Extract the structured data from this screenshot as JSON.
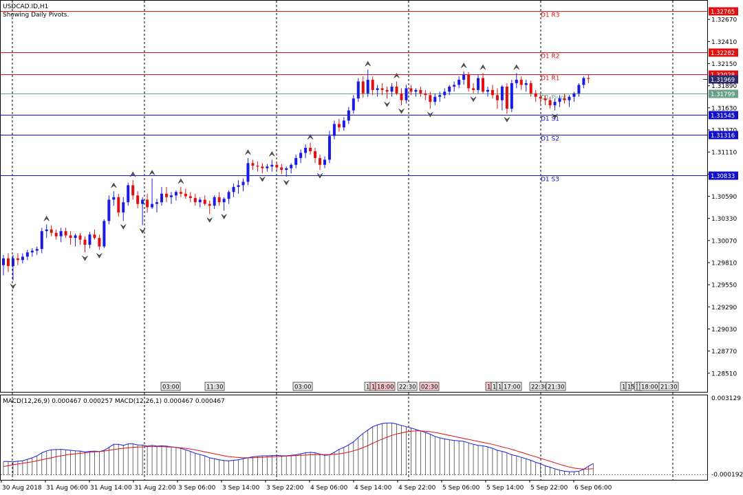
{
  "header": {
    "symbol_line": "USDCAD.ID,H1",
    "indicator_line": "Showing Daily Pivots."
  },
  "colors": {
    "bull": "#1a1ae6",
    "bear": "#e01010",
    "pivot_resistance": "#e01010",
    "pivot_support": "#1010c8",
    "pivot_main": "#6aa08a",
    "macd_signal": "#e01010",
    "macd_main": "#1a1ae6",
    "grid": "#000000"
  },
  "pivot_lines": [
    {
      "name": "R3",
      "label": "D1 R3",
      "price": 1.32765,
      "tag": "1.32765",
      "color": "#e01010"
    },
    {
      "name": "R2",
      "label": "D1 R2",
      "price": 1.32282,
      "tag": "1.32282",
      "color": "#e01010"
    },
    {
      "name": "R1",
      "label": "D1 R1",
      "price": 1.32028,
      "tag": "1.32028",
      "color": "#e01010"
    },
    {
      "name": "P",
      "label": "D1 Pivot",
      "price": 1.31799,
      "tag": "1.31799",
      "color": "#6aa08a"
    },
    {
      "name": "S1",
      "label": "D1 S1",
      "price": 1.31545,
      "tag": "1.31545",
      "color": "#1010c8"
    },
    {
      "name": "S2",
      "label": "D1 S2",
      "price": 1.31316,
      "tag": "1.31316",
      "color": "#1010c8"
    },
    {
      "name": "S3",
      "label": "D1 S3",
      "price": 1.30833,
      "tag": "1.30833",
      "color": "#1010c8"
    }
  ],
  "current_price_tag": "1.31969",
  "chart_data": [
    {
      "type": "candlestick",
      "title": "USDCAD.ID,H1",
      "ylim": [
        1.2829,
        1.3289
      ],
      "y_ticks": [
        "1.32670",
        "1.32410",
        "1.32150",
        "1.31890",
        "1.31630",
        "1.31370",
        "1.31110",
        "1.30850",
        "1.30590",
        "1.30330",
        "1.30070",
        "1.29810",
        "1.29550",
        "1.29290",
        "1.29030",
        "1.28770",
        "1.28510"
      ],
      "x_labels": [
        "30 Aug 2018",
        "31 Aug 06:00",
        "31 Aug 14:00",
        "31 Aug 22:00",
        "3 Sep 06:00",
        "3 Sep 14:00",
        "3 Sep 22:00",
        "4 Sep 06:00",
        "4 Sep 14:00",
        "4 Sep 22:00",
        "5 Sep 06:00",
        "5 Sep 14:00",
        "5 Sep 22:00",
        "6 Sep 06:00"
      ],
      "session_tags": [
        "03:00",
        "11:30",
        "03:00",
        "1",
        "1",
        "18:00",
        "22:30",
        "02:30",
        "1",
        "1",
        "1",
        "17:00",
        "22:30",
        "21:30",
        "1",
        "15",
        "1",
        "1",
        "18:00",
        "21:30"
      ],
      "ohlc": [
        [
          1.2978,
          1.299,
          1.2966,
          1.2986
        ],
        [
          1.2986,
          1.2992,
          1.297,
          1.2977
        ],
        [
          1.2977,
          1.299,
          1.296,
          1.2986
        ],
        [
          1.2986,
          1.2992,
          1.2978,
          1.2984
        ],
        [
          1.2984,
          1.2992,
          1.298,
          1.2988
        ],
        [
          1.2988,
          1.2996,
          1.2984,
          1.2993
        ],
        [
          1.2993,
          1.2998,
          1.2988,
          1.2995
        ],
        [
          1.2995,
          1.3,
          1.299,
          1.2997
        ],
        [
          1.2997,
          1.3022,
          1.2992,
          1.3018
        ],
        [
          1.3018,
          1.3026,
          1.301,
          1.302
        ],
        [
          1.302,
          1.3025,
          1.3012,
          1.3016
        ],
        [
          1.3016,
          1.302,
          1.3008,
          1.3012
        ],
        [
          1.3012,
          1.3022,
          1.3005,
          1.3018
        ],
        [
          1.3018,
          1.3022,
          1.301,
          1.3013
        ],
        [
          1.3013,
          1.3018,
          1.3002,
          1.301
        ],
        [
          1.301,
          1.3015,
          1.3,
          1.3013
        ],
        [
          1.3013,
          1.3016,
          1.3002,
          1.3008
        ],
        [
          1.3008,
          1.3012,
          1.2993,
          1.3002
        ],
        [
          1.3002,
          1.3017,
          1.2998,
          1.3014
        ],
        [
          1.3014,
          1.302,
          1.3008,
          1.301
        ],
        [
          1.301,
          1.3014,
          1.2996,
          1.3
        ],
        [
          1.3,
          1.3032,
          1.2998,
          1.303
        ],
        [
          1.303,
          1.306,
          1.3026,
          1.3055
        ],
        [
          1.3055,
          1.3065,
          1.3048,
          1.3058
        ],
        [
          1.3058,
          1.3062,
          1.3035,
          1.304
        ],
        [
          1.304,
          1.3058,
          1.303,
          1.3052
        ],
        [
          1.3052,
          1.3075,
          1.3048,
          1.3072
        ],
        [
          1.3072,
          1.3078,
          1.3055,
          1.306
        ],
        [
          1.306,
          1.3065,
          1.3045,
          1.305
        ],
        [
          1.305,
          1.3058,
          1.3025,
          1.3055
        ],
        [
          1.3055,
          1.3062,
          1.304,
          1.3046
        ],
        [
          1.3046,
          1.308,
          1.3044,
          1.305
        ],
        [
          1.305,
          1.3056,
          1.304,
          1.3052
        ],
        [
          1.3052,
          1.307,
          1.3048,
          1.3062
        ],
        [
          1.3062,
          1.307,
          1.3052,
          1.3058
        ],
        [
          1.3058,
          1.3064,
          1.305,
          1.306
        ],
        [
          1.306,
          1.3066,
          1.3054,
          1.3064
        ],
        [
          1.3064,
          1.307,
          1.3058,
          1.3062
        ],
        [
          1.3062,
          1.3068,
          1.3056,
          1.3059
        ],
        [
          1.3059,
          1.3064,
          1.3052,
          1.3057
        ],
        [
          1.3057,
          1.3062,
          1.3048,
          1.3052
        ],
        [
          1.3052,
          1.3058,
          1.3046,
          1.3055
        ],
        [
          1.3055,
          1.306,
          1.3048,
          1.305
        ],
        [
          1.305,
          1.3054,
          1.3038,
          1.3048
        ],
        [
          1.3048,
          1.306,
          1.3044,
          1.3058
        ],
        [
          1.3058,
          1.3064,
          1.3048,
          1.3052
        ],
        [
          1.3052,
          1.3058,
          1.3042,
          1.3056
        ],
        [
          1.3056,
          1.3066,
          1.305,
          1.3064
        ],
        [
          1.3064,
          1.3074,
          1.3058,
          1.307
        ],
        [
          1.307,
          1.3078,
          1.3062,
          1.3072
        ],
        [
          1.3072,
          1.308,
          1.3065,
          1.3076
        ],
        [
          1.3076,
          1.3104,
          1.3072,
          1.3098
        ],
        [
          1.3098,
          1.3102,
          1.309,
          1.3095
        ],
        [
          1.3095,
          1.31,
          1.3088,
          1.3094
        ],
        [
          1.3094,
          1.3098,
          1.3086,
          1.3092
        ],
        [
          1.3092,
          1.3097,
          1.3088,
          1.3094
        ],
        [
          1.3094,
          1.3102,
          1.3088,
          1.3096
        ],
        [
          1.3096,
          1.31,
          1.309,
          1.3093
        ],
        [
          1.3093,
          1.3097,
          1.3085,
          1.309
        ],
        [
          1.309,
          1.3094,
          1.3082,
          1.3092
        ],
        [
          1.3092,
          1.3098,
          1.3086,
          1.3096
        ],
        [
          1.3096,
          1.3108,
          1.3092,
          1.3104
        ],
        [
          1.3104,
          1.3114,
          1.3098,
          1.311
        ],
        [
          1.311,
          1.312,
          1.3104,
          1.3116
        ],
        [
          1.3116,
          1.3122,
          1.3108,
          1.3112
        ],
        [
          1.3112,
          1.3116,
          1.3098,
          1.3104
        ],
        [
          1.3104,
          1.3108,
          1.309,
          1.3096
        ],
        [
          1.3096,
          1.3106,
          1.3092,
          1.3102
        ],
        [
          1.3102,
          1.3136,
          1.3098,
          1.313
        ],
        [
          1.313,
          1.3148,
          1.3126,
          1.3144
        ],
        [
          1.3144,
          1.315,
          1.3135,
          1.314
        ],
        [
          1.314,
          1.3152,
          1.3136,
          1.3148
        ],
        [
          1.3148,
          1.3164,
          1.3144,
          1.316
        ],
        [
          1.316,
          1.3178,
          1.3156,
          1.3174
        ],
        [
          1.3174,
          1.3198,
          1.317,
          1.3194
        ],
        [
          1.3194,
          1.32,
          1.3175,
          1.318
        ],
        [
          1.318,
          1.3208,
          1.3176,
          1.3196
        ],
        [
          1.3196,
          1.32,
          1.3178,
          1.3184
        ],
        [
          1.3184,
          1.319,
          1.3176,
          1.3186
        ],
        [
          1.3186,
          1.3192,
          1.3178,
          1.3184
        ],
        [
          1.3184,
          1.3188,
          1.3174,
          1.3182
        ],
        [
          1.3182,
          1.3192,
          1.3176,
          1.3188
        ],
        [
          1.3188,
          1.3194,
          1.3178,
          1.318
        ],
        [
          1.318,
          1.3186,
          1.3166,
          1.3172
        ],
        [
          1.3172,
          1.319,
          1.3168,
          1.3186
        ],
        [
          1.3186,
          1.319,
          1.3178,
          1.3182
        ],
        [
          1.3182,
          1.3186,
          1.3176,
          1.3184
        ],
        [
          1.3184,
          1.3188,
          1.3176,
          1.318
        ],
        [
          1.318,
          1.3184,
          1.3172,
          1.3178
        ],
        [
          1.3178,
          1.3182,
          1.3162,
          1.317
        ],
        [
          1.317,
          1.318,
          1.3166,
          1.3176
        ],
        [
          1.3176,
          1.3182,
          1.317,
          1.3178
        ],
        [
          1.3178,
          1.3186,
          1.3174,
          1.3182
        ],
        [
          1.3182,
          1.319,
          1.3178,
          1.3188
        ],
        [
          1.3188,
          1.3194,
          1.3182,
          1.319
        ],
        [
          1.319,
          1.32,
          1.3186,
          1.3196
        ],
        [
          1.3196,
          1.3206,
          1.319,
          1.3202
        ],
        [
          1.3202,
          1.3205,
          1.3182,
          1.3186
        ],
        [
          1.3186,
          1.3192,
          1.318,
          1.3184
        ],
        [
          1.3184,
          1.3202,
          1.318,
          1.3198
        ],
        [
          1.3198,
          1.3204,
          1.318,
          1.3182
        ],
        [
          1.3182,
          1.3188,
          1.3176,
          1.3184
        ],
        [
          1.3184,
          1.319,
          1.3174,
          1.3178
        ],
        [
          1.3178,
          1.3186,
          1.3162,
          1.3172
        ],
        [
          1.3172,
          1.319,
          1.316,
          1.3188
        ],
        [
          1.3188,
          1.3192,
          1.3156,
          1.3162
        ],
        [
          1.3162,
          1.3196,
          1.3158,
          1.3192
        ],
        [
          1.3192,
          1.3204,
          1.3186,
          1.3196
        ],
        [
          1.3196,
          1.32,
          1.3184,
          1.319
        ],
        [
          1.319,
          1.3196,
          1.3182,
          1.3192
        ],
        [
          1.3192,
          1.3195,
          1.3176,
          1.318
        ],
        [
          1.318,
          1.3184,
          1.317,
          1.3176
        ],
        [
          1.3176,
          1.318,
          1.3168,
          1.3174
        ],
        [
          1.3174,
          1.3178,
          1.3166,
          1.3172
        ],
        [
          1.3172,
          1.3176,
          1.3162,
          1.3166
        ],
        [
          1.3166,
          1.3174,
          1.316,
          1.317
        ],
        [
          1.317,
          1.3178,
          1.3164,
          1.3174
        ],
        [
          1.3174,
          1.318,
          1.3168,
          1.3172
        ],
        [
          1.3172,
          1.3178,
          1.3164,
          1.3176
        ],
        [
          1.3176,
          1.3182,
          1.317,
          1.318
        ],
        [
          1.318,
          1.3192,
          1.3176,
          1.319
        ],
        [
          1.319,
          1.32,
          1.3186,
          1.3198
        ],
        [
          1.3198,
          1.3202,
          1.3192,
          1.3197
        ]
      ]
    },
    {
      "type": "line",
      "title": "MACD(12,26,9) 0.000467 0.000257 MACD(12,26,1) 0.000467 0.000467",
      "ylim": [
        -0.00016,
        0.003129
      ],
      "y_ticks": [
        "0.003129",
        "-0.000192"
      ],
      "series": [
        {
          "name": "MACD",
          "values": [
            0.00055,
            0.00055,
            0.00054,
            0.00056,
            0.00058,
            0.00064,
            0.0007,
            0.00078,
            0.0009,
            0.00098,
            0.00102,
            0.00103,
            0.00104,
            0.00102,
            0.001,
            0.00098,
            0.00097,
            0.00094,
            0.00096,
            0.00097,
            0.00095,
            0.001,
            0.00112,
            0.00124,
            0.00124,
            0.0012,
            0.00126,
            0.00126,
            0.00122,
            0.00121,
            0.00117,
            0.0012,
            0.00117,
            0.00118,
            0.00117,
            0.00114,
            0.00112,
            0.00108,
            0.00102,
            0.00096,
            0.00088,
            0.00083,
            0.00078,
            0.0007,
            0.00066,
            0.00062,
            0.00059,
            0.00058,
            0.0006,
            0.00062,
            0.00066,
            0.0007,
            0.00074,
            0.00076,
            0.00078,
            0.00078,
            0.00079,
            0.0008,
            0.00078,
            0.00078,
            0.0008,
            0.00082,
            0.00086,
            0.0009,
            0.00092,
            0.0009,
            0.00085,
            0.0008,
            0.00082,
            0.00092,
            0.00104,
            0.00112,
            0.00122,
            0.00134,
            0.00152,
            0.00168,
            0.00182,
            0.00195,
            0.00202,
            0.00208,
            0.0021,
            0.0021,
            0.00206,
            0.002,
            0.00195,
            0.0019,
            0.00184,
            0.00178,
            0.00172,
            0.00165,
            0.00156,
            0.0015,
            0.00146,
            0.00142,
            0.0014,
            0.00138,
            0.00136,
            0.0013,
            0.00124,
            0.0012,
            0.00118,
            0.00114,
            0.00108,
            0.001,
            0.00096,
            0.0009,
            0.00082,
            0.00078,
            0.00072,
            0.00066,
            0.0006,
            0.00052,
            0.00046,
            0.00038,
            0.00032,
            0.00026,
            0.0002,
            0.00016,
            0.00014,
            0.00014,
            0.00016,
            0.00024,
            0.00036,
            0.00047
          ]
        },
        {
          "name": "Signal",
          "values": [
            0.00035,
            0.00038,
            0.00042,
            0.00045,
            0.00048,
            0.00051,
            0.00054,
            0.00058,
            0.00062,
            0.00066,
            0.0007,
            0.00074,
            0.00078,
            0.00081,
            0.00084,
            0.00086,
            0.00088,
            0.0009,
            0.00092,
            0.00094,
            0.00095,
            0.00097,
            0.001,
            0.00103,
            0.00106,
            0.00108,
            0.0011,
            0.00112,
            0.00113,
            0.00114,
            0.00115,
            0.00115,
            0.00115,
            0.00115,
            0.00114,
            0.00113,
            0.00112,
            0.0011,
            0.00108,
            0.00105,
            0.00102,
            0.00098,
            0.00094,
            0.0009,
            0.00086,
            0.00082,
            0.00078,
            0.00075,
            0.00073,
            0.00071,
            0.0007,
            0.0007,
            0.0007,
            0.00071,
            0.00072,
            0.00073,
            0.00074,
            0.00075,
            0.00076,
            0.00077,
            0.00078,
            0.00079,
            0.0008,
            0.00081,
            0.00082,
            0.00083,
            0.00083,
            0.00083,
            0.00083,
            0.00084,
            0.00086,
            0.00089,
            0.00093,
            0.00098,
            0.00104,
            0.00111,
            0.00119,
            0.00128,
            0.00137,
            0.00145,
            0.00153,
            0.0016,
            0.00166,
            0.0017,
            0.00174,
            0.00177,
            0.00178,
            0.00178,
            0.00177,
            0.00175,
            0.00172,
            0.00168,
            0.00164,
            0.0016,
            0.00156,
            0.00152,
            0.00148,
            0.00144,
            0.0014,
            0.00136,
            0.00132,
            0.00128,
            0.00124,
            0.00119,
            0.00114,
            0.00109,
            0.00104,
            0.00098,
            0.00092,
            0.00086,
            0.0008,
            0.00074,
            0.00068,
            0.00062,
            0.00056,
            0.0005,
            0.00044,
            0.00038,
            0.00033,
            0.00029,
            0.00026,
            0.00025,
            0.00025,
            0.00026
          ]
        }
      ]
    }
  ]
}
